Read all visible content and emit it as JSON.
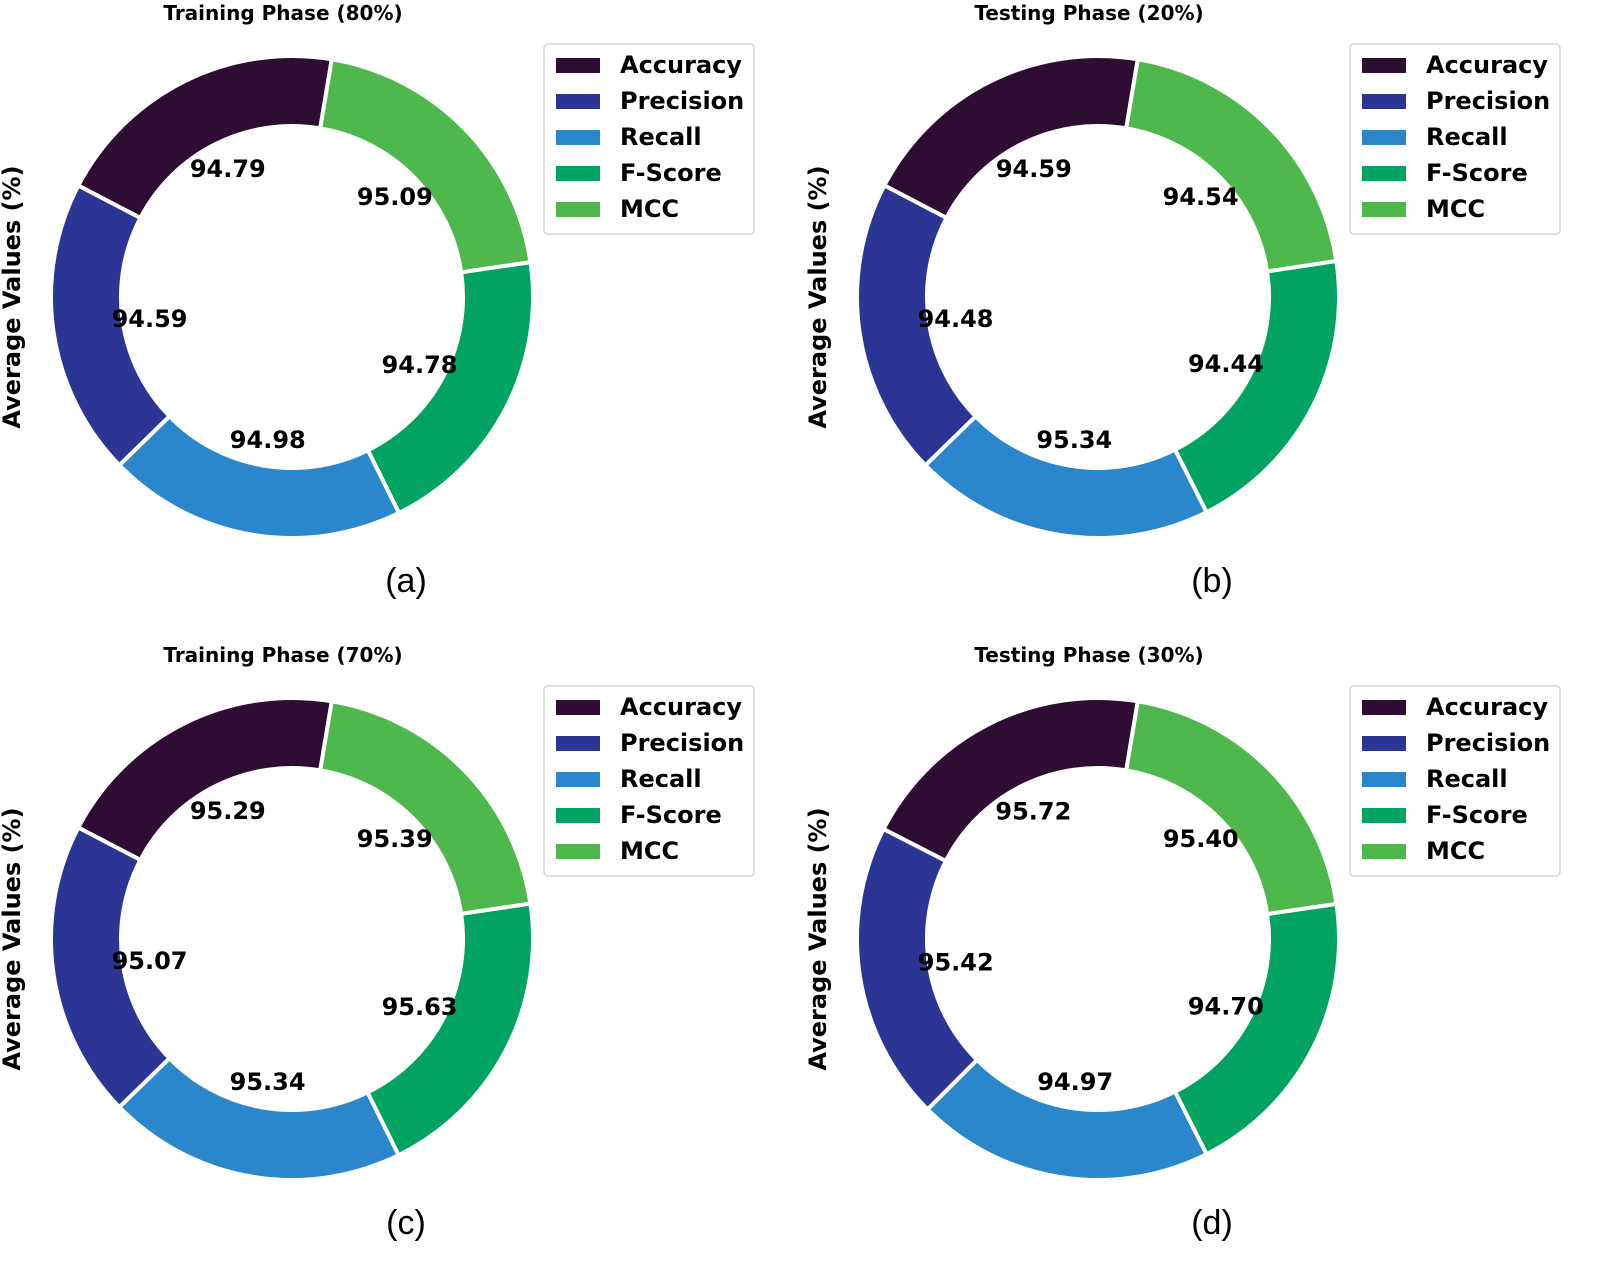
{
  "colors": {
    "Accuracy": "#2e0c33",
    "Precision": "#2b3694",
    "Recall": "#2a87cb",
    "F-Score": "#00a362",
    "MCC": "#4fb84c"
  },
  "chart_data": [
    {
      "type": "pie",
      "donut": true,
      "title": "Training Phase (80%)",
      "ylabel": "Average Values (%)",
      "caption": "(a)",
      "legend_placement": "top-right",
      "categories": [
        "Accuracy",
        "Precision",
        "Recall",
        "F-Score",
        "MCC"
      ],
      "values": [
        94.79,
        94.59,
        94.98,
        94.78,
        95.09
      ],
      "labels": [
        "94.79",
        "94.59",
        "94.98",
        "94.78",
        "95.09"
      ]
    },
    {
      "type": "pie",
      "donut": true,
      "title": "Testing Phase (20%)",
      "ylabel": "Average Values (%)",
      "caption": "(b)",
      "legend_placement": "top-right",
      "categories": [
        "Accuracy",
        "Precision",
        "Recall",
        "F-Score",
        "MCC"
      ],
      "values": [
        94.59,
        94.48,
        95.34,
        94.44,
        94.54
      ],
      "labels": [
        "94.59",
        "94.48",
        "95.34",
        "94.44",
        "94.54"
      ]
    },
    {
      "type": "pie",
      "donut": true,
      "title": "Training Phase (70%)",
      "ylabel": "Average Values (%)",
      "caption": "(c)",
      "legend_placement": "top-right",
      "categories": [
        "Accuracy",
        "Precision",
        "Recall",
        "F-Score",
        "MCC"
      ],
      "values": [
        95.29,
        95.07,
        95.34,
        95.63,
        95.39
      ],
      "labels": [
        "95.29",
        "95.07",
        "95.34",
        "95.63",
        "95.39"
      ]
    },
    {
      "type": "pie",
      "donut": true,
      "title": "Testing Phase (30%)",
      "ylabel": "Average Values (%)",
      "caption": "(d)",
      "legend_placement": "top-right",
      "categories": [
        "Accuracy",
        "Precision",
        "Recall",
        "F-Score",
        "MCC"
      ],
      "values": [
        95.72,
        95.42,
        94.97,
        94.7,
        95.4
      ],
      "labels": [
        "95.72",
        "95.42",
        "94.97",
        "94.70",
        "95.40"
      ]
    }
  ]
}
